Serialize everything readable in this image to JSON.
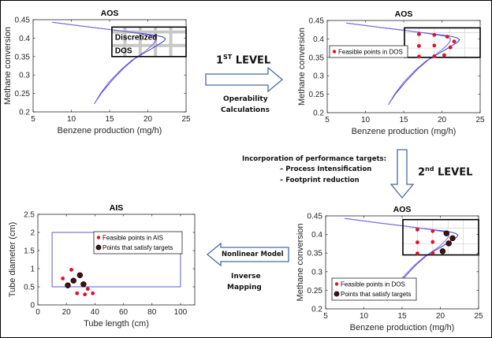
{
  "colors": {
    "curve": "#3b3bd6",
    "feasible": "#e0102a",
    "target_fill": "#4a1010",
    "box": "#000000",
    "ais_box": "#5a5ae0",
    "arrow": "#4a6aa0",
    "grid": "#bfbfbf"
  },
  "flow": {
    "level1_prefix": "1",
    "level1_sup": "ST",
    "level1_suffix": " LEVEL",
    "level1_caption_1": "Operability",
    "level1_caption_2": "Calculations",
    "targets_title": "Incorporation of performance targets:",
    "targets_item_1": "– Process Intensification",
    "targets_item_2": "– Footprint reduction",
    "level2_prefix": "2",
    "level2_sup": "nd",
    "level2_suffix": " LEVEL",
    "nonlinear_label": "Nonlinear Model",
    "inverse_1": "Inverse",
    "inverse_2": "Mapping"
  },
  "chart_data": [
    {
      "id": "aos1",
      "type": "line",
      "title": "AOS",
      "xlabel": "Benzene production (mg/h)",
      "ylabel": "Methane conversion",
      "xlim": [
        5,
        25
      ],
      "ylim": [
        0.2,
        0.45
      ],
      "xticks": [
        "5",
        "10",
        "15",
        "20",
        "25"
      ],
      "yticks": [
        "0.2",
        "0.25",
        "0.3",
        "0.35",
        "0.4",
        "0.45"
      ],
      "dos_box": {
        "x": [
          15.3,
          25
        ],
        "y": [
          0.35,
          0.43
        ]
      },
      "dos_label_1": "Discretized",
      "dos_label_2": "DOS"
    },
    {
      "id": "aos2",
      "type": "scatter",
      "title": "AOS",
      "xlabel": "Benzene production (mg/h)",
      "ylabel": "Methane conversion",
      "xlim": [
        5,
        25
      ],
      "ylim": [
        0.2,
        0.45
      ],
      "xticks": [
        "5",
        "10",
        "15",
        "20",
        "25"
      ],
      "yticks": [
        "0.2",
        "0.25",
        "0.3",
        "0.35",
        "0.4",
        "0.45"
      ],
      "dos_box": {
        "x": [
          15.1,
          25
        ],
        "y": [
          0.35,
          0.43
        ]
      },
      "legend": [
        "Feasible points in DOS"
      ],
      "feasible_points": [
        [
          17,
          0.413
        ],
        [
          19,
          0.411
        ],
        [
          20.7,
          0.406
        ],
        [
          17,
          0.381
        ],
        [
          19,
          0.382
        ],
        [
          21.6,
          0.393
        ],
        [
          21.1,
          0.377
        ],
        [
          17,
          0.352
        ],
        [
          19,
          0.353
        ],
        [
          20.3,
          0.356
        ]
      ]
    },
    {
      "id": "aos3",
      "type": "scatter",
      "title": "AOS",
      "xlabel": "Benzene production (mg/h)",
      "ylabel": "Methane conversion",
      "xlim": [
        5,
        25
      ],
      "ylim": [
        0.2,
        0.45
      ],
      "xticks": [
        "5",
        "10",
        "15",
        "20",
        "25"
      ],
      "yticks": [
        "0.2",
        "0.25",
        "0.3",
        "0.35",
        "0.4",
        "0.45"
      ],
      "dos_box": {
        "x": [
          15.1,
          25
        ],
        "y": [
          0.345,
          0.44
        ]
      },
      "legend": [
        "Feasible points in DOS",
        "Points that satisfy targets"
      ],
      "feasible_points": [
        [
          17,
          0.413
        ],
        [
          19,
          0.409
        ],
        [
          17,
          0.379
        ],
        [
          19,
          0.38
        ],
        [
          17,
          0.349
        ],
        [
          19,
          0.35
        ]
      ],
      "target_points": [
        [
          20.8,
          0.403
        ],
        [
          21.6,
          0.39
        ],
        [
          21.1,
          0.376
        ],
        [
          20.3,
          0.355
        ]
      ]
    },
    {
      "id": "ais",
      "type": "scatter",
      "title": "AIS",
      "xlabel": "Tube length (cm)",
      "ylabel": "Tube diameter (cm)",
      "xlim": [
        0,
        110
      ],
      "ylim": [
        0,
        2.5
      ],
      "xticks": [
        "0",
        "20",
        "40",
        "60",
        "80",
        "100"
      ],
      "yticks": [
        "0",
        "0.5",
        "1",
        "1.5",
        "2",
        "2.5"
      ],
      "ais_box": {
        "x": [
          10,
          100
        ],
        "y": [
          0.5,
          2
        ]
      },
      "legend": [
        "Feasible points in AIS",
        "Points that satisfy targets"
      ],
      "feasible_points": [
        [
          17.5,
          0.73
        ],
        [
          23.5,
          0.97
        ],
        [
          27.5,
          0.32
        ],
        [
          33,
          0.29
        ],
        [
          35,
          0.44
        ],
        [
          38.5,
          0.32
        ]
      ],
      "target_points": [
        [
          21,
          0.54
        ],
        [
          25,
          0.67
        ],
        [
          29.5,
          0.82
        ],
        [
          32,
          0.57
        ]
      ]
    }
  ]
}
